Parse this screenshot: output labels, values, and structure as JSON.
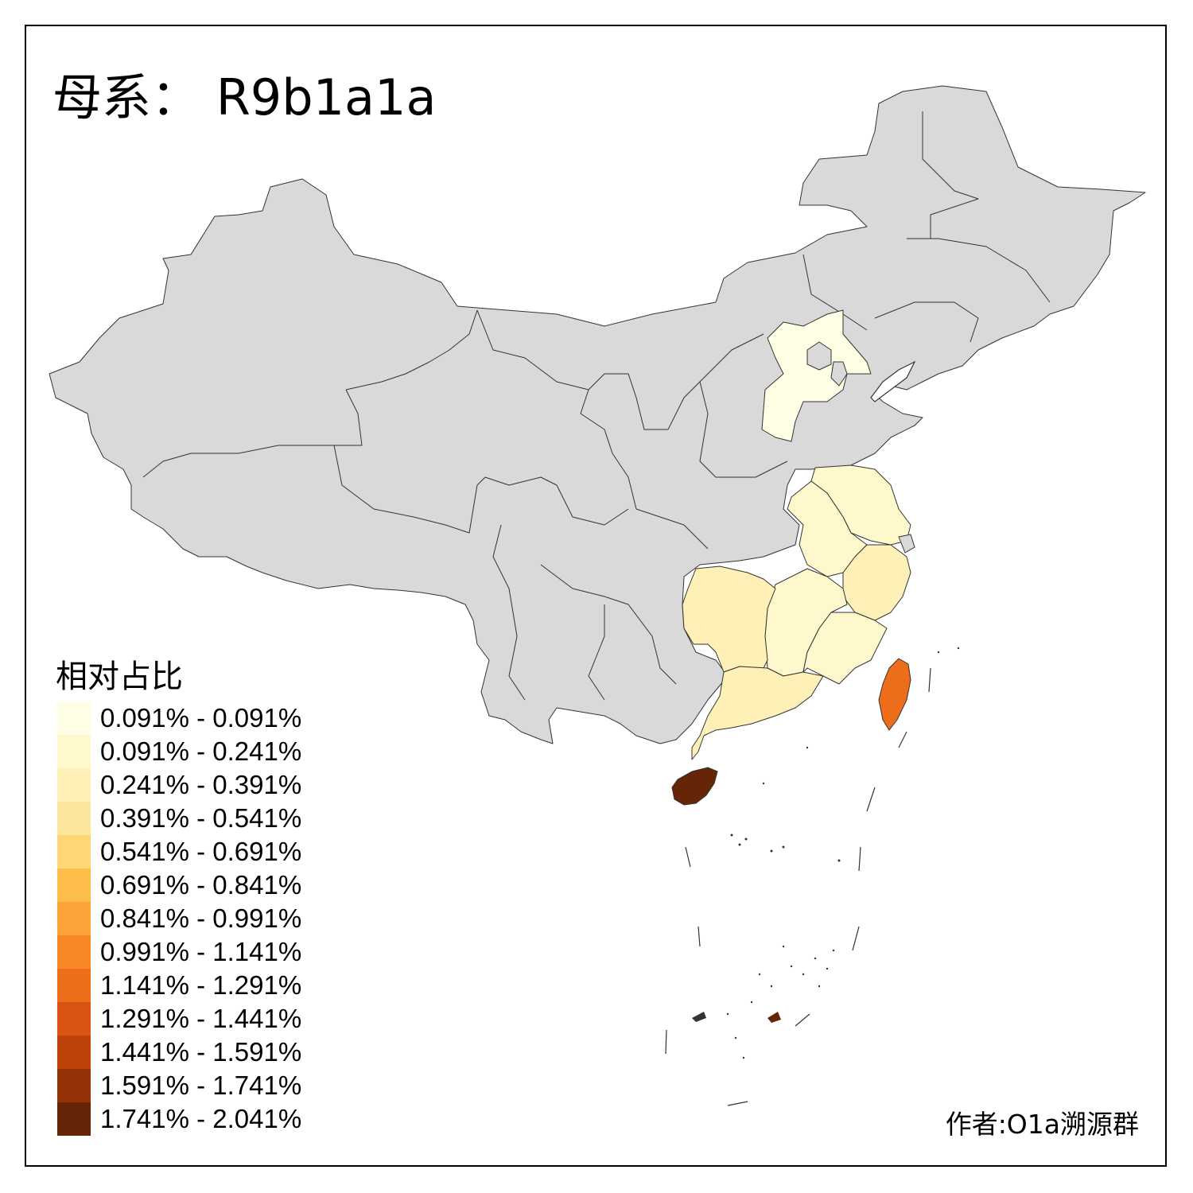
{
  "title": "母系： R9b1a1a",
  "legend": {
    "title": "相对占比",
    "items": [
      {
        "label": "0.091% - 0.091%",
        "color": "#ffffe5"
      },
      {
        "label": "0.091% - 0.241%",
        "color": "#fff8cc"
      },
      {
        "label": "0.241% - 0.391%",
        "color": "#fff0b8"
      },
      {
        "label": "0.391% - 0.541%",
        "color": "#fee59e"
      },
      {
        "label": "0.541% - 0.691%",
        "color": "#fed673"
      },
      {
        "label": "0.691% - 0.841%",
        "color": "#febc4a"
      },
      {
        "label": "0.841% - 0.991%",
        "color": "#fda13a"
      },
      {
        "label": "0.991% - 1.141%",
        "color": "#f88728"
      },
      {
        "label": "1.141% - 1.291%",
        "color": "#ec6d1a"
      },
      {
        "label": "1.291% - 1.441%",
        "color": "#d95410"
      },
      {
        "label": "1.441% - 1.591%",
        "color": "#bd430a"
      },
      {
        "label": "1.591% - 1.741%",
        "color": "#963208"
      },
      {
        "label": "1.741% - 2.041%",
        "color": "#662506"
      }
    ]
  },
  "author": "作者:O1a溯源群",
  "colors": {
    "no_data": "#d9d9d9",
    "border": "#333333",
    "hebei": "#ffffe5",
    "jiangsu": "#fff8cc",
    "anhui": "#fff8cc",
    "jiangxi": "#fff8cc",
    "fujian": "#fff8cc",
    "zhejiang": "#fff0b8",
    "hunan": "#fff0b8",
    "guangdong": "#fff0b8",
    "taiwan": "#ec6d1a",
    "hainan": "#662506"
  }
}
